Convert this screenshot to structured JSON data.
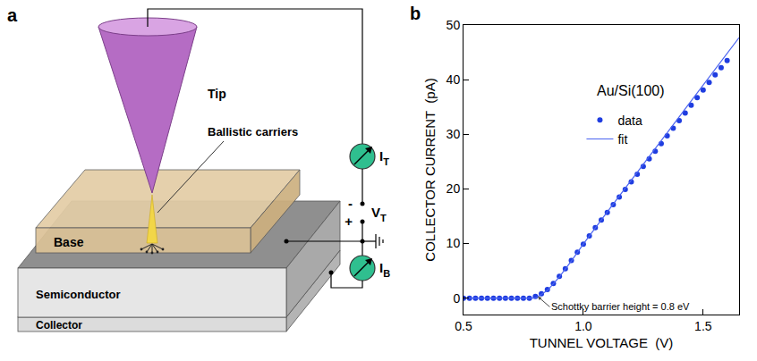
{
  "diagram": {
    "letter": "a",
    "tip": "Tip",
    "carriers": "Ballistic carriers",
    "base": "Base",
    "semiconductor": "Semiconductor",
    "collector": "Collector",
    "tunnel_current": {
      "symbol": "I",
      "subscript": "T"
    },
    "tunnel_voltage": {
      "symbol": "V",
      "subscript": "T"
    },
    "base_current": {
      "symbol": "I",
      "subscript": "B"
    },
    "minus": "-",
    "plus": "+"
  },
  "chart_data": {
    "letter": "b",
    "type": "scatter",
    "xlabel": "TUNNEL VOLTAGE  (V)",
    "ylabel": "COLLECTOR CURRENT  (pA)",
    "xlim": [
      0.5,
      1.65
    ],
    "ylim": [
      -3,
      50
    ],
    "xticks": [
      {
        "value": 0.5,
        "label": "0.5"
      },
      {
        "value": 1,
        "label": "1.0"
      },
      {
        "value": 1.5,
        "label": "1.5"
      }
    ],
    "yticks": [
      0,
      10,
      20,
      30,
      40,
      50
    ],
    "grid": false,
    "legend": "upper left",
    "series": [
      {
        "name": "data",
        "type": "scatter",
        "marker": "circle",
        "color": "#1f3de0",
        "x": [
          0.5,
          0.525,
          0.55,
          0.575,
          0.6,
          0.625,
          0.65,
          0.675,
          0.7,
          0.725,
          0.75,
          0.775,
          0.8,
          0.825,
          0.85,
          0.875,
          0.9,
          0.925,
          0.95,
          0.975,
          1.0,
          1.025,
          1.05,
          1.075,
          1.1,
          1.125,
          1.15,
          1.175,
          1.2,
          1.225,
          1.25,
          1.275,
          1.3,
          1.325,
          1.35,
          1.375,
          1.4,
          1.425,
          1.45,
          1.475,
          1.5,
          1.525,
          1.55,
          1.575,
          1.6
        ],
        "values": [
          0,
          0,
          0,
          0,
          0,
          0,
          0,
          0,
          0,
          0,
          0,
          0,
          0.3,
          0.8,
          1.6,
          2.7,
          4.0,
          5.4,
          6.9,
          8.4,
          9.9,
          11.4,
          12.9,
          14.3,
          15.7,
          17.1,
          18.5,
          19.9,
          21.3,
          22.7,
          24.1,
          25.5,
          26.9,
          28.3,
          29.7,
          31.1,
          32.5,
          33.9,
          35.3,
          36.7,
          38.1,
          39.5,
          40.9,
          42.2,
          43.5
        ]
      },
      {
        "name": "fit",
        "type": "line",
        "line_style": "solid",
        "color": "#4a63f0",
        "x": [
          0.5,
          0.8,
          0.85,
          0.9,
          0.95,
          1.0,
          1.1,
          1.2,
          1.3,
          1.4,
          1.5,
          1.6,
          1.65
        ],
        "values": [
          0,
          0,
          1.4,
          3.9,
          6.8,
          9.9,
          15.8,
          21.6,
          27.4,
          33.2,
          39,
          44.8,
          47.7
        ]
      }
    ],
    "annotations": [
      {
        "text": "Au/Si(100)",
        "x": 1.05,
        "y": 38
      },
      {
        "text": "Schottky barrier height = 0.8 eV",
        "x": 0.86,
        "y": -1.6,
        "arrow_x": 0.81,
        "arrow_y": 0.3
      }
    ]
  }
}
